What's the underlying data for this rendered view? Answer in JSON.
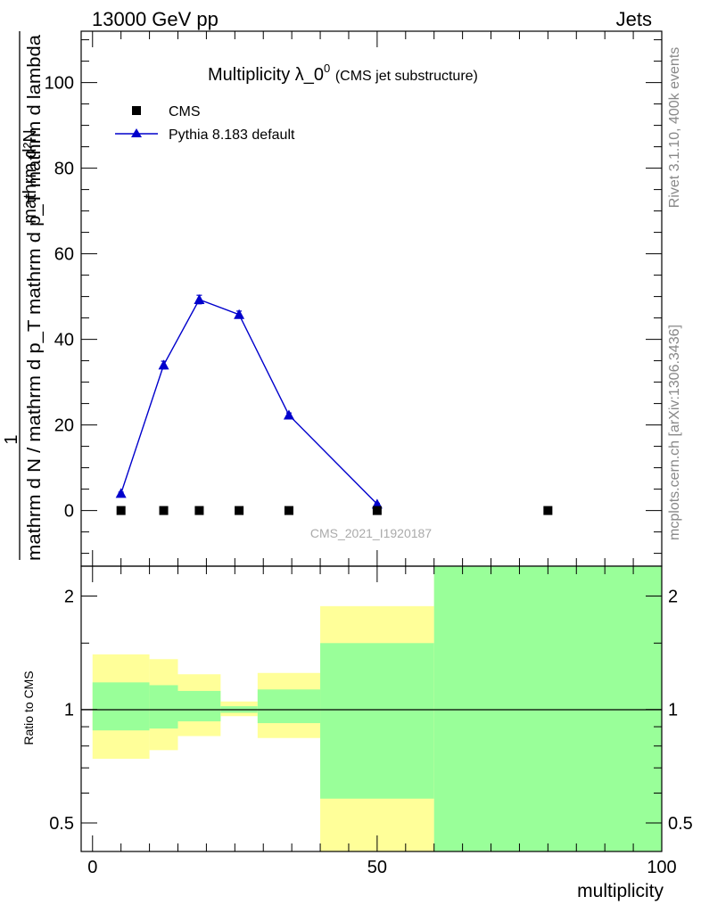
{
  "header": {
    "left": "13000 GeV pp",
    "right": "Jets"
  },
  "side": {
    "rivet": "Rivet 3.1.10,  400k events",
    "mcplots": "mcplots.cern.ch [arXiv:1306.3436]"
  },
  "colors": {
    "cms": "#000000",
    "pythia": "#0000cc",
    "band_inner": "#99ff99",
    "band_outer": "#ffff99"
  },
  "chart_data": [
    {
      "type": "scatter",
      "title": "Multiplicity λ_0",
      "title_sup": "0",
      "title_suffix": "(CMS jet substructure)",
      "analysis": "CMS_2021_I1920187",
      "ylabel_numerator": "mathrm d²N",
      "ylabel_denominator": "mathrm d N / mathrm d p_T mathrm d p_T mathrm d lambda",
      "ylabel_prefix": "1",
      "xlim": [
        -2,
        100
      ],
      "ylim": [
        -13,
        112
      ],
      "yticks": [
        0,
        20,
        40,
        60,
        80,
        100
      ],
      "legend_position": "top-left",
      "series": [
        {
          "name": "CMS",
          "marker": "square",
          "x": [
            5,
            12.5,
            18.75,
            25.75,
            34.5,
            50,
            80
          ],
          "y": [
            0,
            0,
            0,
            0,
            0,
            0,
            0
          ]
        },
        {
          "name": "Pythia 8.183 default",
          "marker": "triangle",
          "line": true,
          "x": [
            5,
            12.5,
            18.75,
            25.75,
            34.5,
            50
          ],
          "y": [
            4.0,
            34.0,
            49.3,
            45.8,
            22.3,
            1.5
          ],
          "yerr": [
            0.3,
            0.9,
            1.0,
            0.8,
            0.5,
            0.2
          ]
        }
      ]
    },
    {
      "type": "area",
      "ylabel": "Ratio to CMS",
      "xlabel": "multiplicity",
      "xlim": [
        -2,
        100
      ],
      "ylim": [
        0.42,
        2.4
      ],
      "yscale": "log",
      "yticks": [
        0.5,
        1,
        2
      ],
      "xticks": [
        0,
        50,
        100
      ],
      "reference_line": 1,
      "bins": [
        {
          "x0": 0,
          "x1": 10,
          "outer": [
            0.74,
            1.4
          ],
          "inner": [
            0.88,
            1.18
          ]
        },
        {
          "x0": 10,
          "x1": 15,
          "outer": [
            0.78,
            1.36
          ],
          "inner": [
            0.89,
            1.16
          ]
        },
        {
          "x0": 15,
          "x1": 22.5,
          "outer": [
            0.85,
            1.24
          ],
          "inner": [
            0.93,
            1.12
          ]
        },
        {
          "x0": 22.5,
          "x1": 29,
          "outer": [
            0.96,
            1.05
          ],
          "inner": [
            0.98,
            1.02
          ]
        },
        {
          "x0": 29,
          "x1": 40,
          "outer": [
            0.84,
            1.25
          ],
          "inner": [
            0.92,
            1.13
          ]
        },
        {
          "x0": 40,
          "x1": 60,
          "outer": [
            0.4,
            1.88
          ],
          "inner": [
            0.58,
            1.5
          ]
        },
        {
          "x0": 60,
          "x1": 100,
          "outer": [
            0.4,
            2.5
          ],
          "inner": [
            0.4,
            2.5
          ]
        }
      ]
    }
  ]
}
